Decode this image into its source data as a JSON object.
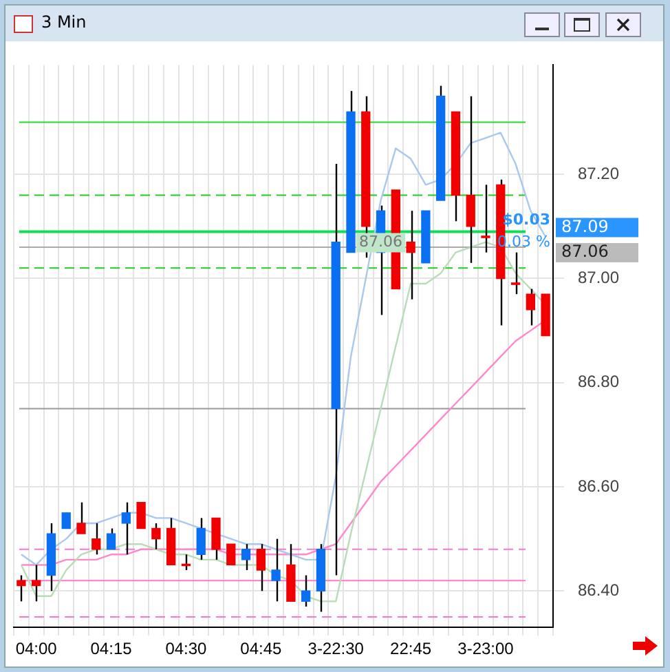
{
  "chart_data": {
    "type": "candlestick",
    "title": "3 Min",
    "categories": [
      null,
      "04:00",
      null,
      null,
      null,
      null,
      "04:15",
      null,
      null,
      null,
      null,
      "04:30",
      null,
      null,
      null,
      null,
      "04:45",
      null,
      null,
      null,
      null,
      "3-22:30",
      null,
      null,
      null,
      null,
      "22:45",
      null,
      null,
      null,
      null,
      "3-23:00",
      null,
      null,
      null,
      null
    ],
    "ohlc": [
      [
        86.42,
        86.43,
        86.38,
        86.41
      ],
      [
        86.42,
        86.45,
        86.38,
        86.41
      ],
      [
        86.43,
        86.53,
        86.4,
        86.51
      ],
      [
        86.52,
        86.55,
        86.52,
        86.55
      ],
      [
        86.53,
        86.57,
        86.51,
        86.51
      ],
      [
        86.5,
        86.53,
        86.47,
        86.48
      ],
      [
        86.48,
        86.52,
        86.48,
        86.51
      ],
      [
        86.53,
        86.57,
        86.47,
        86.55
      ],
      [
        86.57,
        86.57,
        86.52,
        86.52
      ],
      [
        86.52,
        86.53,
        86.48,
        86.5
      ],
      [
        86.52,
        86.54,
        86.45,
        86.45
      ],
      [
        86.45,
        86.47,
        86.44,
        86.45
      ],
      [
        86.47,
        86.54,
        86.46,
        86.52
      ],
      [
        86.54,
        86.54,
        86.46,
        86.48
      ],
      [
        86.49,
        86.49,
        86.45,
        86.45
      ],
      [
        86.46,
        86.49,
        86.44,
        86.48
      ],
      [
        86.48,
        86.49,
        86.4,
        86.44
      ],
      [
        86.42,
        86.5,
        86.38,
        86.44
      ],
      [
        86.45,
        86.49,
        86.38,
        86.38
      ],
      [
        86.38,
        86.43,
        86.37,
        86.4
      ],
      [
        86.4,
        86.49,
        86.36,
        86.48
      ],
      [
        86.75,
        87.22,
        86.43,
        87.07
      ],
      [
        87.05,
        87.36,
        87.05,
        87.32
      ],
      [
        87.32,
        87.35,
        87.04,
        87.1
      ],
      [
        87.05,
        87.14,
        86.93,
        87.13
      ],
      [
        87.17,
        87.17,
        86.98,
        86.98
      ],
      [
        87.07,
        87.13,
        86.96,
        87.05
      ],
      [
        87.03,
        87.13,
        87.03,
        87.13
      ],
      [
        87.15,
        87.37,
        87.15,
        87.35
      ],
      [
        87.32,
        87.32,
        87.11,
        87.16
      ],
      [
        87.16,
        87.35,
        87.03,
        87.1
      ],
      [
        87.08,
        87.18,
        87.05,
        87.08
      ],
      [
        87.18,
        87.19,
        86.91,
        87.0
      ],
      [
        86.99,
        87.05,
        86.97,
        86.99
      ],
      [
        86.97,
        86.98,
        86.91,
        86.94
      ],
      [
        86.97,
        86.97,
        86.89,
        86.89
      ]
    ],
    "colors": [
      "#f00000",
      "#f00000",
      "#0a6ff0",
      "#0a6ff0",
      "#f00000",
      "#f00000",
      "#0a6ff0",
      "#0a6ff0",
      "#f00000",
      "#f00000",
      "#f00000",
      "#f00000",
      "#0a6ff0",
      "#f00000",
      "#f00000",
      "#0a6ff0",
      "#f00000",
      "#0a6ff0",
      "#f00000",
      "#0a6ff0",
      "#0a6ff0",
      "#0a6ff0",
      "#0a6ff0",
      "#f00000",
      "#0a6ff0",
      "#f00000",
      "#f00000",
      "#0a6ff0",
      "#0a6ff0",
      "#f00000",
      "#f00000",
      "#f00000",
      "#f00000",
      "#f00000",
      "#f00000",
      "#f00000"
    ],
    "series": [
      {
        "type": "line",
        "color": "#a8c8f0",
        "values": [
          86.47,
          86.45,
          86.48,
          86.5,
          86.53,
          86.53,
          86.54,
          86.55,
          86.55,
          86.54,
          86.54,
          86.53,
          86.52,
          86.51,
          86.5,
          86.49,
          86.49,
          86.48,
          86.47,
          86.46,
          86.46,
          86.62,
          86.85,
          87.0,
          87.15,
          87.25,
          87.23,
          87.18,
          87.19,
          87.22,
          87.26,
          87.27,
          87.28,
          87.22,
          87.13,
          87.08
        ]
      },
      {
        "type": "line",
        "color": "#b8dcb8",
        "values": [
          86.45,
          86.39,
          86.39,
          86.44,
          86.47,
          86.48,
          86.48,
          86.49,
          86.49,
          86.48,
          86.47,
          86.47,
          86.46,
          86.46,
          86.45,
          86.45,
          86.45,
          86.43,
          86.42,
          86.39,
          86.38,
          86.38,
          86.51,
          86.63,
          86.75,
          86.87,
          86.99,
          86.99,
          87.01,
          87.05,
          87.06,
          87.07,
          87.06,
          87.01,
          86.98,
          86.95
        ]
      },
      {
        "type": "line",
        "color": "#ff88cc",
        "values": [
          86.45,
          86.45,
          86.45,
          86.46,
          86.46,
          86.46,
          86.47,
          86.47,
          86.48,
          86.48,
          86.48,
          86.48,
          86.48,
          86.48,
          86.47,
          86.47,
          86.47,
          86.47,
          86.47,
          86.47,
          86.48,
          86.49,
          86.53,
          86.57,
          86.61,
          86.64,
          86.67,
          86.7,
          86.73,
          86.76,
          86.79,
          86.82,
          86.85,
          86.88,
          86.9,
          86.92
        ]
      }
    ],
    "ylim": [
      86.33,
      87.41
    ],
    "yticks": [
      {
        "value": 86.4,
        "label": "86.40"
      },
      {
        "value": 86.6,
        "label": "86.60"
      },
      {
        "value": 86.8,
        "label": "86.80"
      },
      {
        "value": 87.0,
        "label": "87.00"
      },
      {
        "value": 87.2,
        "label": "87.20"
      }
    ],
    "grid": true,
    "legend": false,
    "ref_lines": [
      {
        "axis": "y",
        "value": 87.3,
        "color": "#22dd22",
        "line_style": "solid"
      },
      {
        "axis": "y",
        "value": 87.16,
        "color": "#22cc22",
        "line_style": "dashed"
      },
      {
        "axis": "y",
        "value": 87.09,
        "color": "#11dd55",
        "line_style": "solid",
        "label": "87.09"
      },
      {
        "axis": "y",
        "value": 87.06,
        "color": "#aaaaaa",
        "line_style": "solid",
        "label": "87.06"
      },
      {
        "axis": "y",
        "value": 87.02,
        "color": "#22cc22",
        "line_style": "dashed"
      },
      {
        "axis": "y",
        "value": 86.75,
        "color": "#999999",
        "line_style": "solid"
      },
      {
        "axis": "y",
        "value": 86.48,
        "color": "#ff77cc",
        "line_style": "dashed"
      },
      {
        "axis": "y",
        "value": 86.42,
        "color": "#ff77cc",
        "line_style": "solid"
      },
      {
        "axis": "y",
        "value": 86.35,
        "color": "#ff77cc",
        "line_style": "dashed"
      }
    ],
    "annotations": [
      "$0.03",
      "0.03 %",
      "87.06"
    ]
  }
}
